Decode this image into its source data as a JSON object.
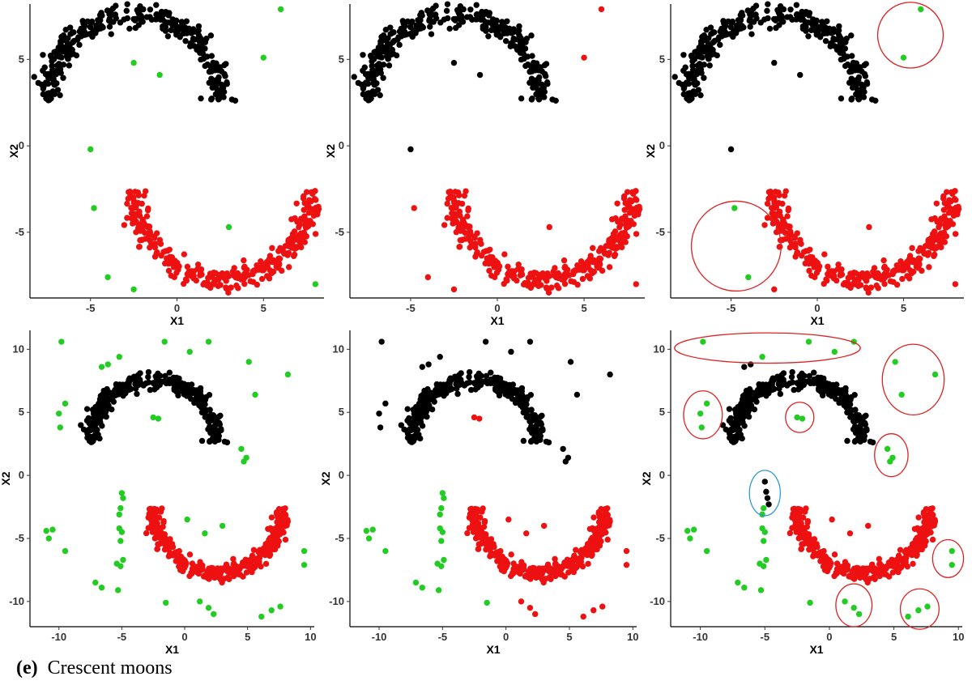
{
  "caption": {
    "label": "(e)",
    "text": "Crescent moons"
  },
  "colors": {
    "black": "#000000",
    "red": "#ee1111",
    "green": "#22cc22",
    "ring_red": "#dd2222",
    "ring_blue": "#3399cc"
  },
  "chart_data": [
    {
      "type": "scatter",
      "panel": "top-left",
      "xlabel": "X1",
      "ylabel": "X2",
      "xlim": [
        -8.5,
        8.5
      ],
      "ylim": [
        -8.8,
        8.2
      ],
      "xticks": [
        -5,
        0,
        5
      ],
      "yticks": [
        -5,
        0,
        5
      ],
      "tick_labels_x": [
        "-5",
        "0",
        "5"
      ],
      "tick_labels_y": [
        "-5",
        "0",
        "5"
      ],
      "moons": {
        "upper": "black",
        "lower": "red"
      },
      "outliers": {
        "color": "green",
        "points": [
          [
            6,
            7.9
          ],
          [
            5,
            5.1
          ],
          [
            -2.5,
            4.8
          ],
          [
            -1,
            4.1
          ],
          [
            -5,
            -0.2
          ],
          [
            -4.8,
            -3.6
          ],
          [
            3,
            -4.7
          ],
          [
            -4,
            -7.6
          ],
          [
            -2.5,
            -8.3
          ],
          [
            8,
            -8
          ]
        ]
      }
    },
    {
      "type": "scatter",
      "panel": "top-middle",
      "xlabel": "X1",
      "ylabel": "X2",
      "xlim": [
        -8.5,
        8.5
      ],
      "ylim": [
        -8.8,
        8.2
      ],
      "xticks": [
        -5,
        0,
        5
      ],
      "yticks": [
        -5,
        0,
        5
      ],
      "tick_labels_x": [
        "-5",
        "0",
        "5"
      ],
      "tick_labels_y": [
        "-5",
        "0",
        "5"
      ],
      "moons": {
        "upper": "black",
        "lower": "red"
      },
      "outliers": {
        "color": "mixed",
        "points": [
          [
            6,
            7.9,
            "red"
          ],
          [
            5,
            5.1,
            "red"
          ],
          [
            -2.5,
            4.8,
            "black"
          ],
          [
            -1,
            4.1,
            "black"
          ],
          [
            -5,
            -0.2,
            "black"
          ],
          [
            -4.8,
            -3.6,
            "red"
          ],
          [
            3,
            -4.7,
            "red"
          ],
          [
            -4,
            -7.6,
            "red"
          ],
          [
            -2.5,
            -8.3,
            "red"
          ],
          [
            8,
            -8,
            "red"
          ]
        ]
      }
    },
    {
      "type": "scatter",
      "panel": "top-right",
      "xlabel": "X1",
      "ylabel": "X2",
      "xlim": [
        -8.5,
        8.5
      ],
      "ylim": [
        -8.8,
        8.2
      ],
      "xticks": [
        -5,
        0,
        5
      ],
      "yticks": [
        -5,
        0,
        5
      ],
      "tick_labels_x": [
        "-5",
        "0",
        "5"
      ],
      "tick_labels_y": [
        "-5",
        "0",
        "5"
      ],
      "moons": {
        "upper": "black",
        "lower": "red"
      },
      "outliers": {
        "color": "mixed",
        "points": [
          [
            6,
            7.9,
            "green"
          ],
          [
            5,
            5.1,
            "green"
          ],
          [
            -2.5,
            4.8,
            "black"
          ],
          [
            -1,
            4.1,
            "black"
          ],
          [
            -5,
            -0.2,
            "black"
          ],
          [
            -4.8,
            -3.6,
            "green"
          ],
          [
            3,
            -4.7,
            "red"
          ],
          [
            -4,
            -7.6,
            "green"
          ],
          [
            -2.5,
            -8.3,
            "red"
          ],
          [
            8,
            -8,
            "red"
          ]
        ]
      },
      "rings": [
        {
          "cx": 5.4,
          "cy": 6.4,
          "rx": 1.9,
          "ry": 1.9,
          "color": "ring_red"
        },
        {
          "cx": -4.7,
          "cy": -5.8,
          "rx": 2.6,
          "ry": 2.6,
          "color": "ring_red"
        }
      ]
    },
    {
      "type": "scatter",
      "panel": "bottom-left",
      "xlabel": "X1",
      "ylabel": "X2",
      "xlim": [
        -12.3,
        10.3
      ],
      "ylim": [
        -12,
        11.5
      ],
      "xticks": [
        -10,
        -5,
        0,
        5,
        10
      ],
      "yticks": [
        -10,
        -5,
        0,
        5,
        10
      ],
      "tick_labels_x": [
        "-10",
        "-5",
        "0",
        "5",
        "10"
      ],
      "tick_labels_y": [
        "-10",
        "-5",
        "0",
        "5",
        "10"
      ],
      "moons": {
        "upper": "black",
        "lower": "red"
      },
      "outliers": {
        "color": "green",
        "points": [
          [
            -9.8,
            10.6
          ],
          [
            -6.6,
            8.6
          ],
          [
            -6.1,
            8.8
          ],
          [
            -5.2,
            9.4
          ],
          [
            -1.6,
            10.6
          ],
          [
            0.4,
            9.8
          ],
          [
            1.9,
            10.6
          ],
          [
            5.1,
            9
          ],
          [
            5.6,
            6.4
          ],
          [
            8.2,
            8
          ],
          [
            -9.5,
            5.7
          ],
          [
            -10,
            4.9
          ],
          [
            -9.9,
            3.8
          ],
          [
            -2.5,
            4.6
          ],
          [
            -2.1,
            4.5
          ],
          [
            4.5,
            2.1
          ],
          [
            4.9,
            1.4
          ],
          [
            4.7,
            1.1
          ],
          [
            -5,
            -1.4
          ],
          [
            -4.9,
            -1.8
          ],
          [
            -5.1,
            -2.6
          ],
          [
            -5.2,
            -3.1
          ],
          [
            -5.2,
            -4.2
          ],
          [
            -5,
            -4.5
          ],
          [
            -5.1,
            -5.2
          ],
          [
            -4.9,
            -6.7
          ],
          [
            -5.4,
            -7
          ],
          [
            -5.1,
            -7.2
          ],
          [
            -11,
            -4.4
          ],
          [
            -10.8,
            -5
          ],
          [
            -10.5,
            -4.3
          ],
          [
            -9.5,
            -6
          ],
          [
            -7.1,
            -8.5
          ],
          [
            -6.6,
            -8.9
          ],
          [
            -5.3,
            -9.1
          ],
          [
            -1.5,
            -10.1
          ],
          [
            1.2,
            -10
          ],
          [
            1.9,
            -10.5
          ],
          [
            2.3,
            -11
          ],
          [
            6.1,
            -11.2
          ],
          [
            6.9,
            -10.7
          ],
          [
            7.6,
            -10.4
          ],
          [
            9.5,
            -6
          ],
          [
            9.5,
            -7.1
          ],
          [
            1.6,
            -4.6
          ],
          [
            0.2,
            -3.5
          ],
          [
            3,
            -4
          ]
        ]
      }
    },
    {
      "type": "scatter",
      "panel": "bottom-middle",
      "xlabel": "X1",
      "ylabel": "X2",
      "xlim": [
        -12.3,
        10.3
      ],
      "ylim": [
        -12,
        11.5
      ],
      "xticks": [
        -10,
        -5,
        0,
        5,
        10
      ],
      "yticks": [
        -10,
        -5,
        0,
        5,
        10
      ],
      "tick_labels_x": [
        "-10",
        "-5",
        "0",
        "5",
        "10"
      ],
      "tick_labels_y": [
        "-10",
        "-5",
        "0",
        "5",
        "10"
      ],
      "moons": {
        "upper": "black",
        "lower": "red"
      },
      "outliers": {
        "color": "mixed",
        "points": [
          [
            -9.8,
            10.6,
            "black"
          ],
          [
            -6.6,
            8.6,
            "black"
          ],
          [
            -6.1,
            8.8,
            "black"
          ],
          [
            -5.2,
            9.4,
            "black"
          ],
          [
            -1.6,
            10.6,
            "black"
          ],
          [
            0.4,
            9.8,
            "black"
          ],
          [
            1.9,
            10.6,
            "black"
          ],
          [
            5.1,
            9,
            "black"
          ],
          [
            5.6,
            6.4,
            "black"
          ],
          [
            8.2,
            8,
            "black"
          ],
          [
            -9.5,
            5.7,
            "black"
          ],
          [
            -10,
            4.9,
            "black"
          ],
          [
            -9.9,
            3.8,
            "black"
          ],
          [
            -2.5,
            4.6,
            "red"
          ],
          [
            -2.1,
            4.5,
            "red"
          ],
          [
            4.5,
            2.1,
            "black"
          ],
          [
            4.9,
            1.4,
            "black"
          ],
          [
            4.7,
            1.1,
            "black"
          ],
          [
            -5,
            -1.4,
            "green"
          ],
          [
            -4.9,
            -1.8,
            "green"
          ],
          [
            -5.1,
            -2.6,
            "green"
          ],
          [
            -5.2,
            -3.1,
            "green"
          ],
          [
            -5.2,
            -4.2,
            "green"
          ],
          [
            -5,
            -4.5,
            "green"
          ],
          [
            -5.1,
            -5.2,
            "green"
          ],
          [
            -4.9,
            -6.7,
            "green"
          ],
          [
            -5.4,
            -7,
            "green"
          ],
          [
            -5.1,
            -7.2,
            "green"
          ],
          [
            -11,
            -4.4,
            "green"
          ],
          [
            -10.8,
            -5,
            "green"
          ],
          [
            -10.5,
            -4.3,
            "green"
          ],
          [
            -9.5,
            -6,
            "green"
          ],
          [
            -7.1,
            -8.5,
            "green"
          ],
          [
            -6.6,
            -8.9,
            "green"
          ],
          [
            -5.3,
            -9.1,
            "green"
          ],
          [
            -1.5,
            -10.1,
            "green"
          ],
          [
            1.2,
            -10,
            "red"
          ],
          [
            1.9,
            -10.5,
            "red"
          ],
          [
            2.3,
            -11,
            "red"
          ],
          [
            6.1,
            -11.2,
            "red"
          ],
          [
            6.9,
            -10.7,
            "red"
          ],
          [
            7.6,
            -10.4,
            "red"
          ],
          [
            9.5,
            -6,
            "red"
          ],
          [
            9.5,
            -7.1,
            "red"
          ],
          [
            1.6,
            -4.6,
            "red"
          ],
          [
            0.2,
            -3.5,
            "red"
          ],
          [
            3,
            -4,
            "red"
          ]
        ]
      }
    },
    {
      "type": "scatter",
      "panel": "bottom-right",
      "xlabel": "X1",
      "ylabel": "X2",
      "xlim": [
        -12.3,
        10.3
      ],
      "ylim": [
        -12,
        11.5
      ],
      "xticks": [
        -10,
        -5,
        0,
        5,
        10
      ],
      "yticks": [
        -10,
        -5,
        0,
        5,
        10
      ],
      "tick_labels_x": [
        "-10",
        "-5",
        "0",
        "5",
        "10"
      ],
      "tick_labels_y": [
        "-10",
        "-5",
        "0",
        "5",
        "10"
      ],
      "moons": {
        "upper": "black",
        "lower": "red"
      },
      "outliers": {
        "color": "mixed",
        "points": [
          [
            -9.8,
            10.6,
            "green"
          ],
          [
            -6.6,
            8.6,
            "black"
          ],
          [
            -6.1,
            8.8,
            "black"
          ],
          [
            -5.2,
            9.4,
            "green"
          ],
          [
            -1.6,
            10.6,
            "green"
          ],
          [
            0.4,
            9.8,
            "green"
          ],
          [
            1.9,
            10.6,
            "green"
          ],
          [
            5.1,
            9,
            "green"
          ],
          [
            5.6,
            6.4,
            "green"
          ],
          [
            8.2,
            8,
            "green"
          ],
          [
            -9.5,
            5.7,
            "green"
          ],
          [
            -10,
            4.9,
            "green"
          ],
          [
            -9.9,
            3.8,
            "green"
          ],
          [
            -2.5,
            4.6,
            "green"
          ],
          [
            -2.1,
            4.5,
            "green"
          ],
          [
            4.5,
            2.1,
            "green"
          ],
          [
            4.9,
            1.4,
            "green"
          ],
          [
            4.7,
            1.1,
            "green"
          ],
          [
            -5,
            -0.5,
            "black"
          ],
          [
            -4.9,
            -1.3,
            "black"
          ],
          [
            -4.8,
            -1.8,
            "black"
          ],
          [
            -4.7,
            -2.3,
            "black"
          ],
          [
            -5.1,
            -2.6,
            "green"
          ],
          [
            -5.2,
            -3.1,
            "green"
          ],
          [
            -5.2,
            -4.2,
            "green"
          ],
          [
            -5,
            -4.5,
            "green"
          ],
          [
            -5.1,
            -5.2,
            "green"
          ],
          [
            -4.9,
            -6.7,
            "green"
          ],
          [
            -5.4,
            -7,
            "green"
          ],
          [
            -5.1,
            -7.2,
            "green"
          ],
          [
            -11,
            -4.4,
            "green"
          ],
          [
            -10.8,
            -5,
            "green"
          ],
          [
            -10.5,
            -4.3,
            "green"
          ],
          [
            -9.5,
            -6,
            "green"
          ],
          [
            -7.1,
            -8.5,
            "green"
          ],
          [
            -6.6,
            -8.9,
            "green"
          ],
          [
            -5.3,
            -9.1,
            "green"
          ],
          [
            -1.5,
            -10.1,
            "green"
          ],
          [
            1.2,
            -10,
            "green"
          ],
          [
            1.9,
            -10.5,
            "green"
          ],
          [
            2.3,
            -11,
            "green"
          ],
          [
            6.1,
            -11.2,
            "green"
          ],
          [
            6.9,
            -10.7,
            "green"
          ],
          [
            7.6,
            -10.4,
            "green"
          ],
          [
            9.5,
            -6,
            "green"
          ],
          [
            9.5,
            -7.1,
            "green"
          ],
          [
            1.6,
            -4.6,
            "red"
          ],
          [
            0.2,
            -3.5,
            "red"
          ],
          [
            3,
            -4,
            "red"
          ]
        ]
      },
      "rings": [
        {
          "cx": -4.8,
          "cy": 10.1,
          "rx": 7.2,
          "ry": 1.2,
          "color": "ring_red"
        },
        {
          "cx": 6.5,
          "cy": 7.6,
          "rx": 2.4,
          "ry": 2.8,
          "color": "ring_red"
        },
        {
          "cx": -9.8,
          "cy": 4.8,
          "rx": 1.5,
          "ry": 1.9,
          "color": "ring_red"
        },
        {
          "cx": -2.3,
          "cy": 4.6,
          "rx": 1.1,
          "ry": 1.2,
          "color": "ring_red"
        },
        {
          "cx": 4.8,
          "cy": 1.6,
          "rx": 1.3,
          "ry": 1.7,
          "color": "ring_red"
        },
        {
          "cx": -5.0,
          "cy": -1.4,
          "rx": 1.2,
          "ry": 1.8,
          "color": "ring_blue"
        },
        {
          "cx": 9.2,
          "cy": -6.6,
          "rx": 1.2,
          "ry": 1.5,
          "color": "ring_red"
        },
        {
          "cx": 1.9,
          "cy": -10.3,
          "rx": 1.4,
          "ry": 1.7,
          "color": "ring_red"
        },
        {
          "cx": 7.0,
          "cy": -10.6,
          "rx": 1.5,
          "ry": 1.6,
          "color": "ring_red"
        }
      ]
    }
  ]
}
